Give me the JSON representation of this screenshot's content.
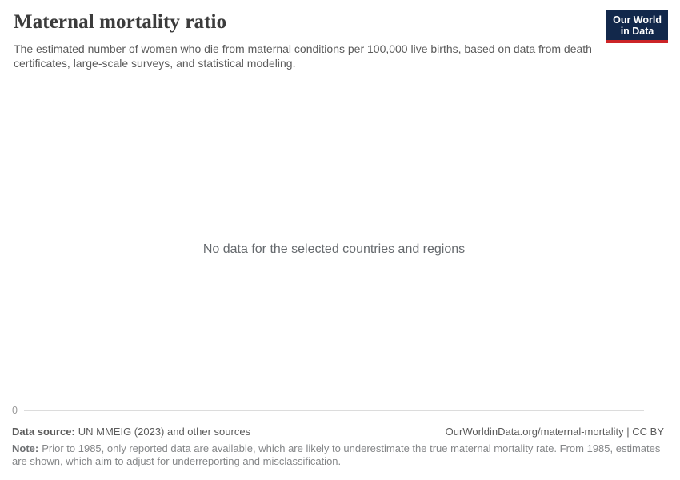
{
  "header": {
    "title": "Maternal mortality ratio",
    "subtitle": "The estimated number of women who die from maternal conditions per 100,000 live births, based on data from death certificates, large-scale surveys, and statistical modeling.",
    "logo": {
      "line1": "Our World",
      "line2": "in Data"
    }
  },
  "chart": {
    "empty_message": "No data for the selected countries and regions",
    "y_axis_tick": "0"
  },
  "chart_data": {
    "type": "line",
    "title": "Maternal mortality ratio",
    "subtitle": "The estimated number of women who die from maternal conditions per 100,000 live births, based on data from death certificates, large-scale surveys, and statistical modeling.",
    "series": [],
    "categories": [],
    "y_ticks": [
      0
    ],
    "ylim": [
      0,
      null
    ],
    "grid": false,
    "legend_position": "none",
    "empty_state": true,
    "empty_message": "No data for the selected countries and regions"
  },
  "footer": {
    "data_source_label": "Data source:",
    "data_source_value": "UN MMEIG (2023) and other sources",
    "citation": "OurWorldinData.org/maternal-mortality | CC BY",
    "note_label": "Note:",
    "note_text": "Prior to 1985, only reported data are available, which are likely to underestimate the true maternal mortality rate. From 1985, estimates are shown, which aim to adjust for underreporting and misclassification."
  },
  "colors": {
    "logo_background": "#12284b",
    "logo_accent_red": "#cc2427",
    "title_text": "#3c3c3c",
    "subtitle_text": "#5b5b5b",
    "empty_message_text": "#666a6e",
    "axis_tick_text": "#999999",
    "axis_line": "#dcdcdc",
    "footer_text": "#5b5b5b",
    "note_text": "#848688"
  }
}
